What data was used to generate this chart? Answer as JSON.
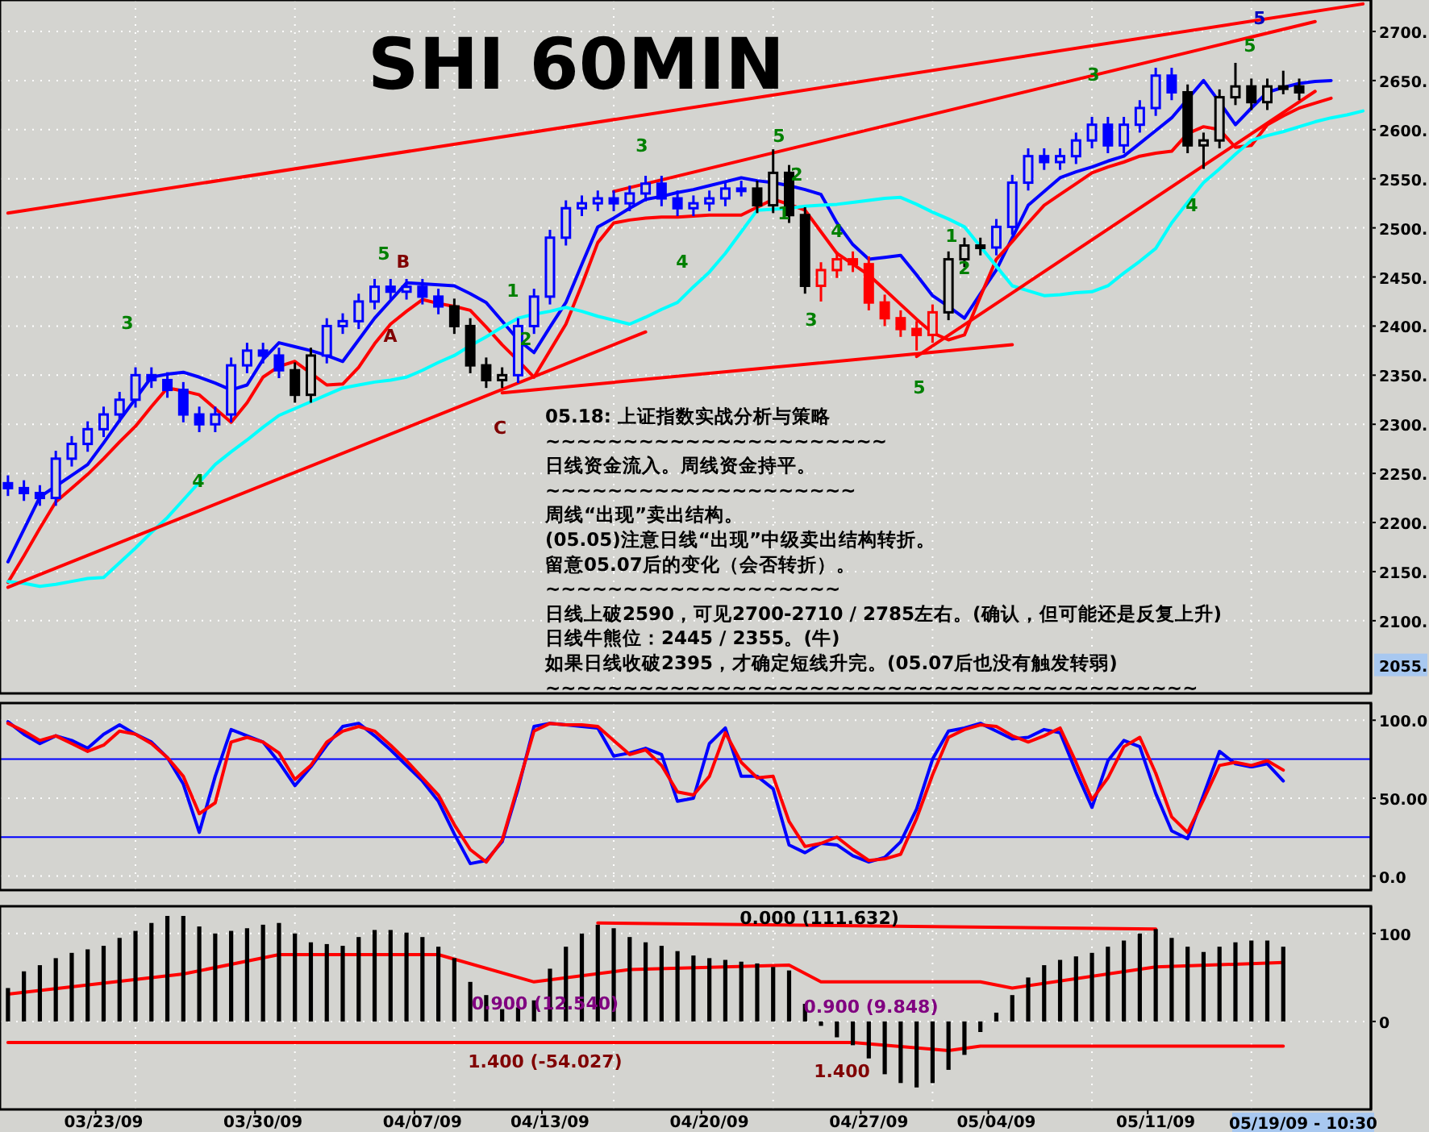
{
  "chart_data": [
    {
      "type": "candlestick",
      "title": "SHI 60MIN",
      "categories": [
        null,
        null,
        null,
        null,
        null,
        null,
        null,
        null,
        null,
        null,
        null,
        null,
        null,
        null,
        null,
        null,
        null,
        null,
        null,
        null,
        null,
        null,
        null,
        null,
        null,
        null,
        null,
        null,
        null,
        null,
        null,
        null,
        null,
        null,
        null,
        null,
        null,
        null,
        null,
        null,
        null,
        null,
        null,
        null,
        null,
        null,
        null,
        null,
        null,
        null,
        null,
        null,
        null,
        null,
        null,
        null,
        null,
        null,
        null,
        null,
        null,
        null,
        null,
        null,
        null,
        null,
        null,
        null,
        null,
        null,
        null,
        null,
        null,
        null,
        null,
        null,
        null,
        null,
        null,
        null,
        null,
        null,
        null,
        null,
        null,
        null
      ],
      "ohlc": [
        [
          2240,
          2248,
          2227,
          2235
        ],
        [
          2235,
          2243,
          2222,
          2230
        ],
        [
          2230,
          2238,
          2217,
          2225
        ],
        [
          2225,
          2273,
          2217,
          2265
        ],
        [
          2265,
          2288,
          2257,
          2280
        ],
        [
          2280,
          2303,
          2272,
          2295
        ],
        [
          2295,
          2318,
          2287,
          2310
        ],
        [
          2310,
          2333,
          2302,
          2325
        ],
        [
          2325,
          2358,
          2317,
          2350
        ],
        [
          2350,
          2358,
          2337,
          2345
        ],
        [
          2345,
          2353,
          2327,
          2335
        ],
        [
          2335,
          2343,
          2302,
          2310
        ],
        [
          2310,
          2318,
          2292,
          2300
        ],
        [
          2300,
          2318,
          2292,
          2310
        ],
        [
          2310,
          2368,
          2302,
          2360
        ],
        [
          2360,
          2383,
          2352,
          2375
        ],
        [
          2375,
          2383,
          2362,
          2370
        ],
        [
          2370,
          2378,
          2347,
          2355
        ],
        [
          2355,
          2363,
          2322,
          2330
        ],
        [
          2330,
          2378,
          2322,
          2370
        ],
        [
          2370,
          2408,
          2362,
          2400
        ],
        [
          2400,
          2413,
          2392,
          2405
        ],
        [
          2405,
          2433,
          2397,
          2425
        ],
        [
          2425,
          2448,
          2417,
          2440
        ],
        [
          2440,
          2448,
          2427,
          2435
        ],
        [
          2435,
          2448,
          2427,
          2440
        ],
        [
          2440,
          2448,
          2422,
          2430
        ],
        [
          2430,
          2438,
          2412,
          2420
        ],
        [
          2420,
          2428,
          2392,
          2400
        ],
        [
          2400,
          2408,
          2352,
          2360
        ],
        [
          2360,
          2368,
          2337,
          2345
        ],
        [
          2345,
          2358,
          2337,
          2350
        ],
        [
          2350,
          2408,
          2342,
          2400
        ],
        [
          2400,
          2438,
          2392,
          2430
        ],
        [
          2430,
          2498,
          2422,
          2490
        ],
        [
          2490,
          2528,
          2482,
          2520
        ],
        [
          2520,
          2533,
          2512,
          2525
        ],
        [
          2525,
          2538,
          2517,
          2530
        ],
        [
          2530,
          2538,
          2517,
          2525
        ],
        [
          2525,
          2543,
          2517,
          2535
        ],
        [
          2535,
          2553,
          2527,
          2545
        ],
        [
          2545,
          2553,
          2522,
          2530
        ],
        [
          2530,
          2538,
          2512,
          2520
        ],
        [
          2520,
          2533,
          2512,
          2525
        ],
        [
          2525,
          2538,
          2517,
          2530
        ],
        [
          2530,
          2548,
          2522,
          2540
        ],
        [
          2540,
          2548,
          2532,
          2540
        ],
        [
          2540,
          2548,
          2515,
          2523
        ],
        [
          2523,
          2580,
          2515,
          2556
        ],
        [
          2556,
          2564,
          2505,
          2513
        ],
        [
          2513,
          2521,
          2433,
          2441
        ],
        [
          2441,
          2465,
          2425,
          2457
        ],
        [
          2457,
          2476,
          2449,
          2468
        ],
        [
          2468,
          2476,
          2455,
          2463
        ],
        [
          2463,
          2471,
          2416,
          2424
        ],
        [
          2424,
          2432,
          2400,
          2408
        ],
        [
          2408,
          2416,
          2389,
          2397
        ],
        [
          2397,
          2405,
          2375,
          2391
        ],
        [
          2391,
          2422,
          2383,
          2414
        ],
        [
          2414,
          2476,
          2406,
          2468
        ],
        [
          2468,
          2490,
          2460,
          2482
        ],
        [
          2482,
          2490,
          2472,
          2480
        ],
        [
          2480,
          2509,
          2472,
          2501
        ],
        [
          2501,
          2554,
          2493,
          2546
        ],
        [
          2546,
          2581,
          2538,
          2573
        ],
        [
          2573,
          2581,
          2559,
          2567
        ],
        [
          2567,
          2581,
          2559,
          2573
        ],
        [
          2573,
          2597,
          2565,
          2589
        ],
        [
          2589,
          2613,
          2581,
          2605
        ],
        [
          2605,
          2613,
          2576,
          2584
        ],
        [
          2584,
          2613,
          2576,
          2605
        ],
        [
          2605,
          2630,
          2597,
          2622
        ],
        [
          2622,
          2663,
          2614,
          2655
        ],
        [
          2655,
          2663,
          2630,
          2638
        ],
        [
          2638,
          2646,
          2576,
          2584
        ],
        [
          2584,
          2597,
          2560,
          2589
        ],
        [
          2589,
          2641,
          2581,
          2633
        ],
        [
          2633,
          2668,
          2625,
          2644
        ],
        [
          2644,
          2652,
          2620,
          2628
        ],
        [
          2628,
          2652,
          2620,
          2644
        ],
        [
          2644,
          2660,
          2636,
          2644
        ],
        [
          2644,
          2652,
          2630,
          2638
        ],
        null,
        null,
        null,
        null
      ],
      "colors": [
        "#0000ff",
        "#0000ff",
        "#0000ff",
        "#0000ff",
        "#0000ff",
        "#0000ff",
        "#0000ff",
        "#0000ff",
        "#0000ff",
        "#0000ff",
        "#0000ff",
        "#0000ff",
        "#0000ff",
        "#0000ff",
        "#0000ff",
        "#0000ff",
        "#0000ff",
        "#0000ff",
        "#000000",
        "#000000",
        "#0000ff",
        "#0000ff",
        "#0000ff",
        "#0000ff",
        "#0000ff",
        "#0000ff",
        "#0000ff",
        "#0000ff",
        "#000000",
        "#000000",
        "#000000",
        "#000000",
        "#0000ff",
        "#0000ff",
        "#0000ff",
        "#0000ff",
        "#0000ff",
        "#0000ff",
        "#0000ff",
        "#0000ff",
        "#0000ff",
        "#0000ff",
        "#0000ff",
        "#0000ff",
        "#0000ff",
        "#0000ff",
        "#0000ff",
        "#000000",
        "#000000",
        "#000000",
        "#000000",
        "#ff0000",
        "#ff0000",
        "#ff0000",
        "#ff0000",
        "#ff0000",
        "#ff0000",
        "#ff0000",
        "#ff0000",
        "#000000",
        "#000000",
        "#000000",
        "#0000ff",
        "#0000ff",
        "#0000ff",
        "#0000ff",
        "#0000ff",
        "#0000ff",
        "#0000ff",
        "#0000ff",
        "#0000ff",
        "#0000ff",
        "#0000ff",
        "#0000ff",
        "#000000",
        "#000000",
        "#000000",
        "#000000",
        "#000000",
        "#000000",
        "#000000",
        "#000000",
        null,
        null,
        null,
        null
      ],
      "series": [
        {
          "type": "line",
          "color": "#0000ff",
          "values": [
            2160,
            2193,
            2226,
            2237,
            2248,
            2259,
            2281,
            2304,
            2326,
            2348,
            2351,
            2353,
            2348,
            2342,
            2335,
            2340,
            2366,
            2383,
            2379,
            2375,
            2370,
            2364,
            2386,
            2408,
            2426,
            2444,
            2443,
            2442,
            2441,
            2433,
            2424,
            2405,
            2386,
            2373,
            2399,
            2424,
            2463,
            2501,
            2510,
            2520,
            2529,
            2532,
            2536,
            2539,
            2543,
            2547,
            2551,
            2548,
            2546,
            2543,
            2539,
            2534,
            2505,
            2483,
            2468,
            2470,
            2472,
            2452,
            2431,
            2420,
            2408,
            2433,
            2457,
            2490,
            2523,
            2537,
            2551,
            2557,
            2562,
            2568,
            2573,
            2586,
            2599,
            2612,
            2631,
            2650,
            2628,
            2605,
            2622,
            2638,
            2643,
            2647,
            2649,
            2650,
            null,
            null
          ]
        },
        {
          "type": "line",
          "color": "#ff0000",
          "values": [
            2139,
            2166,
            2194,
            2221,
            2235,
            2249,
            2265,
            2282,
            2298,
            2318,
            2337,
            2334,
            2330,
            2316,
            2302,
            2322,
            2348,
            2359,
            2364,
            2352,
            2340,
            2341,
            2358,
            2382,
            2402,
            2415,
            2427,
            2423,
            2420,
            2416,
            2399,
            2381,
            2365,
            2348,
            2375,
            2402,
            2442,
            2485,
            2505,
            2508,
            2510,
            2511,
            2511,
            2512,
            2513,
            2513,
            2513,
            2521,
            2529,
            2524,
            2518,
            2496,
            2474,
            2463,
            2452,
            2437,
            2422,
            2407,
            2393,
            2386,
            2391,
            2430,
            2468,
            2486,
            2505,
            2523,
            2534,
            2545,
            2556,
            2562,
            2567,
            2573,
            2576,
            2578,
            2596,
            2603,
            2600,
            2582,
            2584,
            2605,
            2614,
            2622,
            2627,
            2632,
            null,
            null
          ]
        },
        {
          "type": "line",
          "color": "#00ffff",
          "values": [
            2140,
            2138,
            2135,
            2137,
            2140,
            2143,
            2144,
            2159,
            2174,
            2190,
            2205,
            2223,
            2241,
            2259,
            2272,
            2284,
            2297,
            2309,
            2316,
            2323,
            2330,
            2337,
            2340,
            2343,
            2345,
            2348,
            2355,
            2363,
            2370,
            2380,
            2389,
            2399,
            2408,
            2412,
            2415,
            2419,
            2415,
            2410,
            2406,
            2402,
            2409,
            2417,
            2424,
            2440,
            2455,
            2474,
            2496,
            2518,
            2519,
            2520,
            2522,
            2523,
            2524,
            2526,
            2528,
            2530,
            2531,
            2524,
            2516,
            2509,
            2501,
            2481,
            2461,
            2441,
            2436,
            2431,
            2432,
            2434,
            2435,
            2441,
            2454,
            2466,
            2479,
            2505,
            2526,
            2546,
            2560,
            2575,
            2589,
            2594,
            2598,
            2603,
            2608,
            2612,
            2615,
            2619
          ]
        },
        {
          "type": "line",
          "color": "#ff0000",
          "values": [
            2515,
            null,
            null,
            null,
            null,
            null,
            null,
            null,
            null,
            null,
            null,
            null,
            null,
            null,
            null,
            null,
            null,
            null,
            null,
            null,
            null,
            null,
            null,
            null,
            null,
            null,
            null,
            null,
            null,
            null,
            null,
            null,
            null,
            null,
            null,
            null,
            null,
            null,
            null,
            null,
            null,
            null,
            null,
            null,
            null,
            null,
            null,
            null,
            null,
            null,
            null,
            null,
            null,
            null,
            null,
            null,
            null,
            null,
            null,
            null,
            null,
            null,
            null,
            null,
            null,
            null,
            null,
            null,
            null,
            null,
            null,
            null,
            null,
            null,
            null,
            null,
            null,
            null,
            null,
            null,
            null,
            null,
            null,
            null,
            null,
            2728
          ]
        },
        {
          "type": "line",
          "color": "#ff0000",
          "values": [
            null,
            null,
            null,
            null,
            null,
            null,
            null,
            null,
            null,
            null,
            null,
            null,
            null,
            null,
            null,
            null,
            null,
            null,
            null,
            null,
            null,
            null,
            null,
            null,
            null,
            null,
            null,
            null,
            null,
            null,
            null,
            null,
            null,
            null,
            null,
            null,
            null,
            null,
            2537,
            null,
            null,
            null,
            null,
            null,
            null,
            null,
            null,
            null,
            null,
            null,
            null,
            null,
            null,
            null,
            null,
            null,
            null,
            null,
            null,
            null,
            null,
            null,
            null,
            null,
            null,
            null,
            null,
            null,
            null,
            null,
            null,
            null,
            null,
            null,
            null,
            null,
            null,
            null,
            null,
            null,
            null,
            null,
            2710,
            null,
            null,
            null
          ]
        },
        {
          "type": "line",
          "color": "#ff0000",
          "values": [
            2134,
            null,
            null,
            null,
            null,
            null,
            null,
            null,
            null,
            null,
            null,
            null,
            null,
            null,
            null,
            null,
            null,
            null,
            null,
            null,
            null,
            null,
            null,
            null,
            null,
            null,
            null,
            null,
            null,
            null,
            null,
            null,
            null,
            null,
            null,
            null,
            null,
            null,
            null,
            null,
            2394,
            null,
            null,
            null,
            null,
            null,
            null,
            null,
            null,
            null,
            null,
            null,
            null,
            null,
            null,
            null,
            null,
            null,
            null,
            null,
            null,
            null,
            null,
            null,
            null,
            null,
            null,
            null,
            null,
            null,
            null,
            null,
            null,
            null,
            null,
            null,
            null,
            null,
            null,
            null,
            null,
            null,
            null,
            null,
            null,
            null
          ]
        },
        {
          "type": "line",
          "color": "#ff0000",
          "values": [
            null,
            null,
            null,
            null,
            null,
            null,
            null,
            null,
            null,
            null,
            null,
            null,
            null,
            null,
            null,
            null,
            null,
            null,
            null,
            null,
            null,
            null,
            null,
            null,
            null,
            null,
            null,
            null,
            null,
            null,
            null,
            2332,
            null,
            null,
            null,
            null,
            null,
            null,
            null,
            null,
            null,
            null,
            null,
            null,
            null,
            null,
            null,
            null,
            null,
            null,
            null,
            null,
            null,
            null,
            null,
            null,
            null,
            null,
            null,
            null,
            null,
            null,
            null,
            2381,
            null,
            null,
            null,
            null,
            null,
            null,
            null,
            null,
            null,
            null,
            null,
            null,
            null,
            null,
            null,
            null,
            null,
            null,
            null,
            null,
            null,
            null
          ]
        },
        {
          "type": "line",
          "color": "#ff0000",
          "values": [
            null,
            null,
            null,
            null,
            null,
            null,
            null,
            null,
            null,
            null,
            null,
            null,
            null,
            null,
            null,
            null,
            null,
            null,
            null,
            null,
            null,
            null,
            null,
            null,
            null,
            null,
            null,
            null,
            null,
            null,
            null,
            null,
            null,
            null,
            null,
            null,
            null,
            null,
            null,
            null,
            null,
            null,
            null,
            null,
            null,
            null,
            null,
            null,
            null,
            null,
            null,
            null,
            null,
            null,
            null,
            null,
            null,
            2369,
            null,
            null,
            null,
            null,
            null,
            null,
            null,
            null,
            null,
            null,
            null,
            null,
            null,
            null,
            null,
            null,
            null,
            null,
            null,
            null,
            null,
            null,
            null,
            null,
            2639,
            null,
            null,
            null
          ]
        }
      ],
      "ylim": [
        2026,
        2732
      ],
      "yticks": [
        {
          "value": 2100,
          "label": "2100."
        },
        {
          "value": 2150,
          "label": "2150."
        },
        {
          "value": 2200,
          "label": "2200."
        },
        {
          "value": 2250,
          "label": "2250."
        },
        {
          "value": 2300,
          "label": "2300."
        },
        {
          "value": 2350,
          "label": "2350."
        },
        {
          "value": 2400,
          "label": "2400."
        },
        {
          "value": 2450,
          "label": "2450."
        },
        {
          "value": 2500,
          "label": "2500."
        },
        {
          "value": 2550,
          "label": "2550."
        },
        {
          "value": 2600,
          "label": "2600."
        },
        {
          "value": 2650,
          "label": "2650."
        },
        {
          "value": 2700,
          "label": "2700."
        }
      ],
      "grid": true,
      "annotations": [
        "05.18: 上证指数实战分析与策略",
        "~~~~~~~~~~~~~~~~~~~~~~",
        "日线资金流入。周线资金持平。",
        "~~~~~~~~~~~~~~~~~~~~",
        "周线“出现”卖出结构。",
        "(05.05)注意日线“出现”中级卖出结构转折。",
        "留意05.07后的变化（会否转折）。",
        "~~~~~~~~~~~~~~~~~~~",
        "日线上破2590，可见2700-2710 / 2785左右。(确认，但可能还是反复上升)",
        "日线牛熊位：2445 / 2355。(牛)",
        "如果日线收破2395，才确定短线升完。(05.07后也没有触发转弱)",
        "~~~~~~~~~~~~~~~~~~~~~~~~~~~~~~~~~~~~~~~~~~",
        "3",
        "4",
        "5",
        "B",
        "A",
        "1",
        "2",
        "C",
        "3",
        "4",
        "5",
        "2",
        "1",
        "4",
        "3",
        "5",
        "1",
        "2",
        "3",
        "4",
        "5",
        "5",
        "2055."
      ]
    },
    {
      "type": "line",
      "categories": [
        null,
        null,
        null,
        null,
        null,
        null,
        null,
        null,
        null,
        null,
        null,
        null,
        null,
        null,
        null,
        null,
        null,
        null,
        null,
        null,
        null,
        null,
        null,
        null,
        null,
        null,
        null,
        null,
        null,
        null,
        null,
        null,
        null,
        null,
        null,
        null,
        null,
        null,
        null,
        null,
        null,
        null,
        null,
        null,
        null,
        null,
        null,
        null,
        null,
        null,
        null,
        null,
        null,
        null,
        null,
        null,
        null,
        null,
        null,
        null,
        null,
        null,
        null,
        null,
        null,
        null,
        null,
        null,
        null,
        null,
        null,
        null,
        null,
        null,
        null,
        null,
        null,
        null,
        null,
        null,
        null,
        null,
        null,
        null,
        null,
        null
      ],
      "series": [
        {
          "color": "#0000ff",
          "values": [
            99,
            91,
            85,
            90,
            87,
            82,
            91,
            97,
            91,
            86,
            76,
            59,
            28,
            64,
            94,
            90,
            86,
            73,
            58,
            70,
            84,
            96,
            98,
            90,
            81,
            71,
            61,
            48,
            27,
            8,
            10,
            22,
            56,
            96,
            98,
            97,
            96,
            95,
            77,
            79,
            82,
            78,
            48,
            50,
            85,
            95,
            64,
            64,
            56,
            20,
            15,
            21,
            20,
            13,
            9,
            12,
            22,
            43,
            75,
            93,
            95,
            98,
            93,
            88,
            89,
            94,
            92,
            67,
            44,
            74,
            87,
            83,
            53,
            29,
            24,
            52,
            80,
            72,
            70,
            72,
            61,
            null,
            null,
            null,
            null,
            null
          ]
        },
        {
          "color": "#ff0000",
          "values": [
            98,
            93,
            87,
            90,
            85,
            80,
            84,
            93,
            91,
            85,
            76,
            64,
            40,
            47,
            86,
            89,
            86,
            79,
            62,
            71,
            86,
            93,
            96,
            93,
            84,
            74,
            63,
            52,
            33,
            17,
            9,
            23,
            58,
            93,
            98,
            97,
            97,
            96,
            87,
            78,
            81,
            71,
            54,
            52,
            64,
            92,
            73,
            63,
            64,
            35,
            19,
            21,
            25,
            17,
            10,
            11,
            14,
            37,
            65,
            89,
            94,
            97,
            96,
            90,
            86,
            90,
            95,
            73,
            49,
            63,
            83,
            89,
            66,
            38,
            28,
            49,
            71,
            73,
            71,
            74,
            68,
            null,
            null,
            null,
            null,
            null
          ]
        }
      ],
      "ref_lines": [
        {
          "axis": "y",
          "value": 75,
          "color": "#0000ff"
        },
        {
          "axis": "y",
          "value": 25,
          "color": "#0000ff"
        }
      ],
      "ylim": [
        -9,
        111
      ],
      "yticks": [
        {
          "value": 100,
          "label": "100.0"
        },
        {
          "value": 50,
          "label": "50.00"
        },
        {
          "value": 0,
          "label": "0.0"
        }
      ],
      "grid": true
    },
    {
      "type": "bar",
      "color": "#000000",
      "categories": [
        null,
        null,
        null,
        null,
        null,
        null,
        "03/23/09",
        null,
        null,
        null,
        null,
        null,
        null,
        null,
        null,
        null,
        "03/30/09",
        null,
        null,
        null,
        null,
        null,
        null,
        null,
        null,
        null,
        "04/07/09",
        null,
        null,
        null,
        null,
        null,
        null,
        null,
        "04/13/09",
        null,
        null,
        null,
        null,
        null,
        null,
        null,
        null,
        null,
        "04/20/09",
        null,
        null,
        null,
        null,
        null,
        null,
        null,
        null,
        null,
        "04/27/09",
        null,
        null,
        null,
        null,
        null,
        null,
        null,
        "05/04/09",
        null,
        null,
        null,
        null,
        null,
        null,
        null,
        null,
        null,
        "05/11/09",
        null,
        null,
        null,
        null,
        null,
        null,
        null,
        null,
        null,
        null,
        null,
        null,
        null
      ],
      "values": [
        38,
        57,
        64,
        72,
        78,
        82,
        86,
        95,
        103,
        112,
        120,
        120,
        108,
        100,
        103,
        106,
        110,
        112,
        100,
        90,
        88,
        86,
        96,
        104,
        104,
        101,
        96,
        85,
        72,
        45,
        30,
        14,
        16,
        24,
        60,
        85,
        100,
        110,
        106,
        96,
        90,
        86,
        80,
        75,
        72,
        70,
        68,
        66,
        62,
        58,
        20,
        -5,
        -18,
        -27,
        -42,
        -60,
        -70,
        -75,
        -70,
        -55,
        -38,
        -12,
        10,
        30,
        50,
        64,
        70,
        74,
        78,
        85,
        92,
        100,
        105,
        95,
        85,
        79,
        85,
        90,
        92,
        92,
        85,
        null,
        null,
        null,
        null,
        null
      ],
      "series": [
        {
          "type": "line",
          "color": "#ff0000",
          "values": [
            31,
            null,
            null,
            null,
            null,
            null,
            null,
            null,
            null,
            null,
            null,
            54,
            null,
            null,
            null,
            null,
            null,
            76,
            null,
            null,
            null,
            null,
            null,
            null,
            null,
            null,
            null,
            76,
            null,
            null,
            null,
            null,
            null,
            45,
            null,
            null,
            null,
            null,
            null,
            59,
            null,
            null,
            null,
            null,
            null,
            null,
            null,
            null,
            null,
            64,
            null,
            45,
            null,
            null,
            null,
            null,
            null,
            null,
            null,
            null,
            null,
            45,
            null,
            38,
            null,
            null,
            null,
            null,
            null,
            null,
            null,
            null,
            62,
            null,
            null,
            null,
            null,
            null,
            null,
            null,
            67,
            null,
            null,
            null,
            null,
            null
          ]
        },
        {
          "type": "line",
          "color": "#ff0000",
          "values": [
            -24,
            null,
            null,
            null,
            null,
            null,
            null,
            null,
            null,
            null,
            null,
            null,
            null,
            null,
            null,
            null,
            null,
            null,
            null,
            null,
            null,
            null,
            null,
            null,
            null,
            null,
            null,
            null,
            null,
            null,
            null,
            null,
            null,
            null,
            null,
            null,
            null,
            null,
            null,
            null,
            null,
            null,
            null,
            null,
            null,
            null,
            null,
            null,
            null,
            null,
            null,
            null,
            null,
            -24,
            null,
            null,
            null,
            null,
            null,
            -33,
            null,
            -28,
            null,
            null,
            null,
            null,
            null,
            null,
            null,
            null,
            null,
            null,
            null,
            null,
            null,
            null,
            null,
            null,
            null,
            null,
            -28,
            null,
            null,
            null,
            null,
            null
          ]
        },
        {
          "type": "line",
          "color": "#ff0000",
          "values": [
            null,
            null,
            null,
            null,
            null,
            null,
            null,
            null,
            null,
            null,
            null,
            null,
            null,
            null,
            null,
            null,
            null,
            null,
            null,
            null,
            null,
            null,
            null,
            null,
            null,
            null,
            null,
            null,
            null,
            null,
            null,
            null,
            null,
            null,
            null,
            null,
            null,
            112,
            null,
            null,
            null,
            null,
            null,
            null,
            null,
            null,
            null,
            null,
            null,
            null,
            null,
            null,
            null,
            null,
            null,
            null,
            null,
            null,
            null,
            null,
            null,
            null,
            null,
            null,
            null,
            null,
            null,
            null,
            null,
            null,
            null,
            null,
            105,
            null,
            null,
            null,
            null,
            null,
            null,
            null,
            null,
            null,
            null,
            null,
            null,
            null
          ]
        }
      ],
      "ylim": [
        -100,
        131
      ],
      "yticks": [
        100,
        0
      ],
      "grid": true,
      "annotations": [
        "0.000 (111.632)",
        "0.900 (12.540)",
        "1.400 (-54.027)",
        "0.900 (9.848)",
        "1.400",
        "05/19/09 - 10:30"
      ]
    }
  ]
}
